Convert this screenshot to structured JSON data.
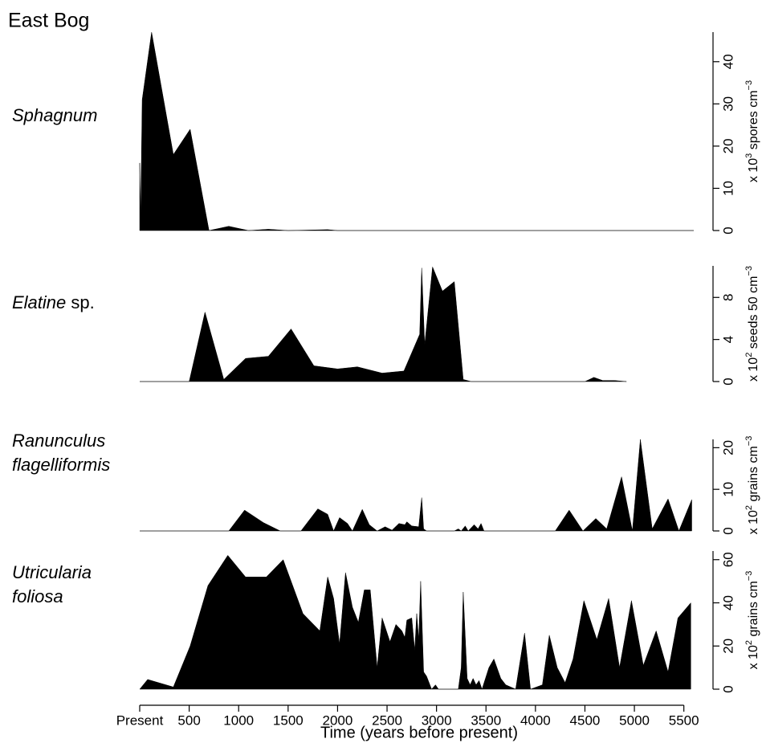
{
  "figure": {
    "title": "East Bog",
    "xlabel": "Time (years before present)",
    "xlim": [
      0,
      5600
    ],
    "xticks": [
      {
        "value": 0,
        "label": "Present"
      },
      500,
      1000,
      1500,
      2000,
      2500,
      3000,
      3500,
      4000,
      4500,
      5000,
      5500
    ]
  },
  "chart_data": [
    {
      "type": "area",
      "title": [
        "Sphagnum"
      ],
      "ylabel": [
        "x 10",
        "3",
        " spores cm",
        "−3"
      ],
      "color": "#000000",
      "ylim": [
        0,
        47
      ],
      "yticks": [
        0,
        10,
        20,
        30,
        40
      ],
      "x": [
        0,
        10,
        25,
        120,
        340,
        510,
        700,
        900,
        1100,
        1300,
        1500,
        1900,
        2000,
        5600
      ],
      "values": [
        16,
        3,
        31,
        47,
        18,
        24,
        0,
        1,
        0,
        0.3,
        0,
        0.2,
        0,
        0
      ]
    },
    {
      "type": "area",
      "title": [
        "Elatine"
      ],
      "title_suffix": " sp.",
      "ylabel": [
        "x 10",
        "2",
        " seeds 50 cm",
        "−3"
      ],
      "color": "#000000",
      "ylim": [
        0,
        11
      ],
      "yticks": [
        0,
        4,
        8
      ],
      "x": [
        0,
        500,
        660,
        850,
        1070,
        1300,
        1530,
        1760,
        2000,
        2200,
        2450,
        2670,
        2830,
        2850,
        2880,
        2960,
        3060,
        3180,
        3270,
        3350,
        4500,
        4590,
        4680,
        4800,
        4920
      ],
      "values": [
        0,
        0,
        6.6,
        0.2,
        2.2,
        2.4,
        5.0,
        1.5,
        1.2,
        1.4,
        0.8,
        1.0,
        4.5,
        10.8,
        3.5,
        10.9,
        8.6,
        9.5,
        0.2,
        0,
        0,
        0.4,
        0.1,
        0.1,
        0
      ]
    },
    {
      "type": "area",
      "title": [
        "Ranunculus",
        "flagelliformis"
      ],
      "ylabel": [
        "x 10",
        "2",
        " grains cm",
        "−3"
      ],
      "color": "#000000",
      "ylim": [
        0,
        22
      ],
      "yticks": [
        0,
        10,
        20
      ],
      "x": [
        0,
        900,
        1060,
        1250,
        1420,
        1630,
        1800,
        1900,
        1960,
        2020,
        2100,
        2150,
        2250,
        2320,
        2400,
        2480,
        2550,
        2620,
        2680,
        2700,
        2750,
        2820,
        2850,
        2870,
        2900,
        3180,
        3220,
        3250,
        3290,
        3320,
        3380,
        3420,
        3450,
        3480,
        4200,
        4340,
        4480,
        4610,
        4720,
        4870,
        4980,
        5060,
        5180,
        5340,
        5450,
        5580
      ],
      "values": [
        0,
        0,
        5,
        2,
        0,
        0,
        5.3,
        4,
        0,
        3.2,
        1.8,
        0,
        5.2,
        1.5,
        0,
        1,
        0.2,
        1.8,
        1.5,
        2.2,
        1.2,
        1,
        8,
        0.5,
        0,
        0,
        0.5,
        0,
        1.2,
        0,
        1.5,
        0.5,
        1.8,
        0,
        0,
        5,
        0,
        3,
        0.5,
        13,
        0,
        22,
        0.5,
        7.7,
        0,
        7.5
      ]
    },
    {
      "type": "area",
      "title": [
        "Utricularia",
        "foliosa"
      ],
      "ylabel": [
        "x 10",
        "2",
        " grains cm",
        "−3"
      ],
      "color": "#000000",
      "ylim": [
        0,
        64
      ],
      "yticks": [
        0,
        20,
        40,
        60
      ],
      "x": [
        0,
        80,
        340,
        510,
        690,
        890,
        1070,
        1280,
        1450,
        1650,
        1820,
        1900,
        1960,
        2020,
        2080,
        2150,
        2210,
        2270,
        2330,
        2400,
        2450,
        2530,
        2590,
        2650,
        2680,
        2700,
        2750,
        2780,
        2800,
        2820,
        2840,
        2870,
        2900,
        2950,
        2990,
        3020,
        3220,
        3250,
        3270,
        3310,
        3340,
        3370,
        3400,
        3430,
        3460,
        3530,
        3580,
        3650,
        3700,
        3800,
        3890,
        3950,
        4070,
        4140,
        4220,
        4300,
        4380,
        4490,
        4620,
        4740,
        4850,
        4970,
        5090,
        5220,
        5340,
        5440,
        5570
      ],
      "values": [
        0,
        4.5,
        1,
        20,
        48,
        62,
        52,
        52,
        60,
        35,
        27,
        52,
        42,
        21,
        54,
        38,
        31,
        46,
        46,
        10,
        33,
        22,
        30,
        27,
        24,
        32,
        33,
        18,
        35,
        23,
        50,
        8,
        6,
        0,
        2,
        0,
        0,
        10,
        45,
        5,
        2,
        5,
        2,
        4,
        0,
        10,
        14,
        5,
        2,
        0,
        26,
        0,
        2,
        25,
        10,
        3,
        14,
        41,
        23,
        42,
        10,
        41,
        11,
        27,
        8,
        33,
        40
      ]
    }
  ]
}
